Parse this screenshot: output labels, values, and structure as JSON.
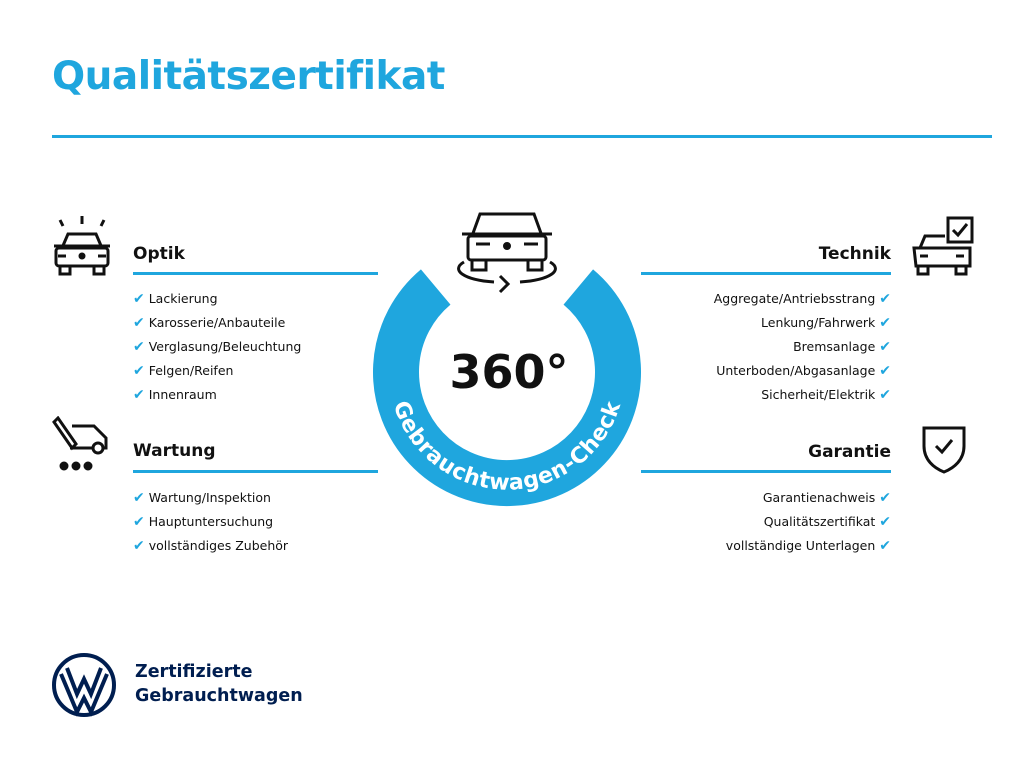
{
  "title": "Qualitätszertifikat",
  "colors": {
    "accent": "#1fa6de",
    "brand_navy": "#001e50"
  },
  "center_badge": {
    "value": "360°",
    "arc_text": "Gebrauchtwagen-Check",
    "icon": "car-rotate-icon"
  },
  "sections": {
    "optik": {
      "heading": "Optik",
      "icon": "car-lights-icon",
      "items": [
        "Lackierung",
        "Karosserie/Anbauteile",
        "Verglasung/Beleuchtung",
        "Felgen/Reifen",
        "Innenraum"
      ]
    },
    "wartung": {
      "heading": "Wartung",
      "icon": "service-van-icon",
      "items": [
        "Wartung/Inspektion",
        "Hauptuntersuchung",
        "vollständiges Zubehör"
      ]
    },
    "technik": {
      "heading": "Technik",
      "icon": "car-checklist-icon",
      "items": [
        "Aggregate/Antriebsstrang",
        "Lenkung/Fahrwerk",
        "Bremsanlage",
        "Unterboden/Abgasanlage",
        "Sicherheit/Elektrik"
      ]
    },
    "garantie": {
      "heading": "Garantie",
      "icon": "shield-check-icon",
      "items": [
        "Garantienachweis",
        "Qualitätszertifikat",
        "vollständige Unterlagen"
      ]
    }
  },
  "check_mark": "✔",
  "footer": {
    "line1": "Zertifizierte",
    "line2": "Gebrauchtwagen",
    "logo": "VW"
  }
}
